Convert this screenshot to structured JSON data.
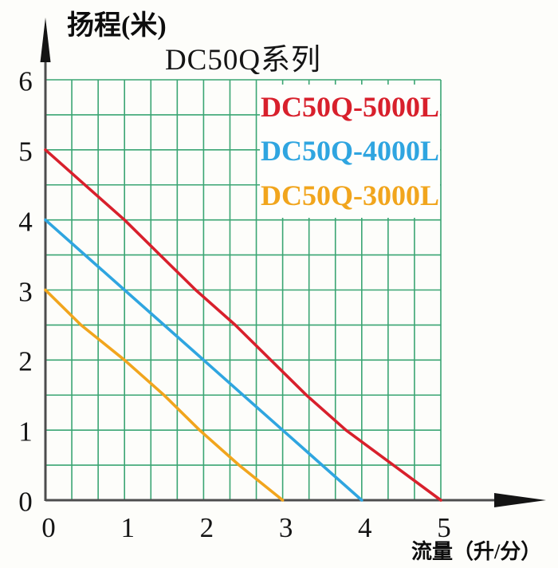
{
  "chart_data": {
    "type": "line",
    "title": "DC50Q系列",
    "ylabel": "扬程(米)",
    "xlabel": "流量（升/分）",
    "xlim": [
      0,
      5
    ],
    "ylim": [
      0,
      6
    ],
    "x_ticks": [
      "0",
      "1",
      "2",
      "3",
      "4",
      "5"
    ],
    "y_ticks": [
      "0",
      "1",
      "2",
      "3",
      "4",
      "5",
      "6"
    ],
    "grid": {
      "on": true,
      "x_minor_divisions_per_unit": 3,
      "y_minor_divisions_per_unit": 2,
      "color": "#3aa573"
    },
    "axis_color": "#4d4d4d",
    "arrow_color": "#141414",
    "text_color": "#151515",
    "legend_position": "top-right",
    "legend_background": "#fefefc",
    "series": [
      {
        "name": "DC50Q-5000L",
        "color": "#d8202c",
        "points": [
          [
            0,
            5
          ],
          [
            0.5,
            4.5
          ],
          [
            1,
            4
          ],
          [
            1.45,
            3.5
          ],
          [
            1.9,
            3
          ],
          [
            2.4,
            2.5
          ],
          [
            2.85,
            2
          ],
          [
            3.3,
            1.5
          ],
          [
            3.8,
            1
          ],
          [
            4.4,
            0.5
          ],
          [
            5,
            0
          ]
        ]
      },
      {
        "name": "DC50Q-4000L",
        "color": "#2fa5e0",
        "points": [
          [
            0,
            4
          ],
          [
            0.5,
            3.5
          ],
          [
            1,
            3
          ],
          [
            1.5,
            2.5
          ],
          [
            2,
            2
          ],
          [
            2.5,
            1.5
          ],
          [
            3,
            1
          ],
          [
            3.5,
            0.5
          ],
          [
            4,
            0
          ]
        ]
      },
      {
        "name": "DC50Q-3000L",
        "color": "#f1a51d",
        "points": [
          [
            0,
            3
          ],
          [
            0.45,
            2.5
          ],
          [
            1,
            2
          ],
          [
            1.5,
            1.5
          ],
          [
            1.95,
            1
          ],
          [
            2.45,
            0.5
          ],
          [
            3,
            0
          ]
        ]
      }
    ]
  }
}
